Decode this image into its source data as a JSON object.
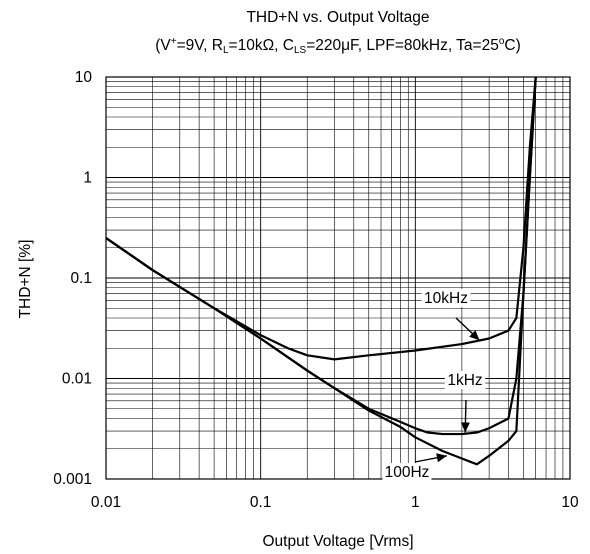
{
  "chart_data": {
    "type": "line",
    "title": "THD+N vs. Output Voltage",
    "subtitle": {
      "lead": "(V",
      "sup": "+",
      "p1": "=9V, R",
      "sub1": "L",
      "p2": "=10kΩ, C",
      "sub2": "LS",
      "p3": "=220μF, LPF=80kHz, Ta=25",
      "sup2": "o",
      "p4": "C)"
    },
    "xlabel": "Output Voltage [Vrms]",
    "ylabel": "THD+N [%]",
    "xscale": "log",
    "yscale": "log",
    "xlim": [
      0.01,
      10
    ],
    "ylim": [
      0.001,
      10
    ],
    "grid": true,
    "x_ticks": [
      "0.01",
      "0.1",
      "1",
      "10"
    ],
    "y_ticks": [
      "0.001",
      "0.01",
      "0.1",
      "1",
      "10"
    ],
    "series": [
      {
        "name": "10kHz",
        "x": [
          0.01,
          0.02,
          0.05,
          0.1,
          0.15,
          0.2,
          0.3,
          0.5,
          1,
          2,
          3,
          4,
          4.5,
          5,
          5.5,
          6
        ],
        "y": [
          0.25,
          0.12,
          0.05,
          0.027,
          0.02,
          0.017,
          0.0155,
          0.017,
          0.019,
          0.022,
          0.025,
          0.03,
          0.04,
          0.2,
          2,
          10
        ]
      },
      {
        "name": "1kHz",
        "x": [
          0.01,
          0.02,
          0.05,
          0.1,
          0.2,
          0.3,
          0.5,
          0.8,
          1,
          1.2,
          1.5,
          2,
          2.5,
          3,
          4,
          4.5,
          5,
          5.5,
          6
        ],
        "y": [
          0.25,
          0.12,
          0.05,
          0.025,
          0.012,
          0.008,
          0.005,
          0.0037,
          0.0032,
          0.0029,
          0.0028,
          0.0028,
          0.0029,
          0.0032,
          0.004,
          0.01,
          0.07,
          1,
          10
        ]
      },
      {
        "name": "100Hz",
        "x": [
          0.01,
          0.02,
          0.05,
          0.1,
          0.2,
          0.3,
          0.5,
          0.8,
          1,
          1.5,
          2,
          2.5,
          3,
          4,
          4.5,
          5,
          5.5,
          6
        ],
        "y": [
          0.25,
          0.12,
          0.05,
          0.025,
          0.012,
          0.008,
          0.0048,
          0.0033,
          0.0026,
          0.0019,
          0.0016,
          0.0014,
          0.0017,
          0.0024,
          0.003,
          0.07,
          1,
          10
        ]
      }
    ],
    "annotations": [
      {
        "text": "10kHz",
        "series": "10kHz",
        "x": 2.6,
        "y": 0.024
      },
      {
        "text": "1kHz",
        "series": "1kHz",
        "x": 2.1,
        "y": 0.0029
      },
      {
        "text": "100Hz",
        "series": "100Hz",
        "x": 1.6,
        "y": 0.0017
      }
    ],
    "legend": "none",
    "line_color": "#000000"
  }
}
